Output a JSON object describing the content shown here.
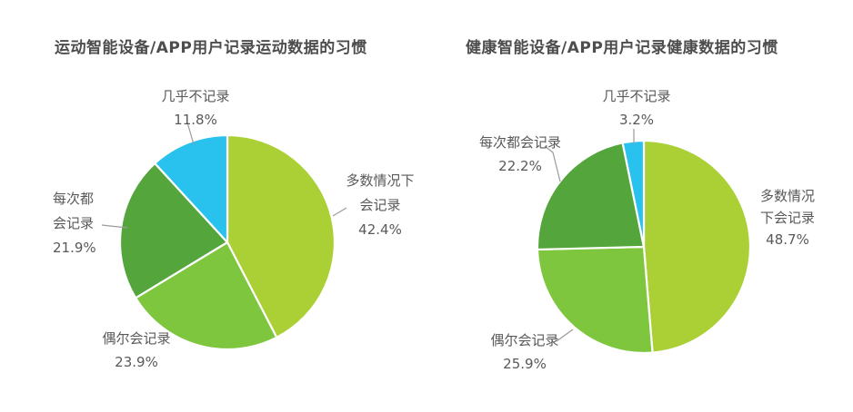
{
  "charts_section": {
    "left_title": "运动智能设备/APP用户记录运动数据的习惯",
    "right_title": "健康智能设备/APP用户记录健康数据的习惯"
  },
  "chart_data": [
    {
      "type": "pie",
      "title": "运动智能设备/APP用户记录运动数据的习惯",
      "labels": [
        "多数情况下会记录",
        "偶尔会记录",
        "每次都会记录",
        "几乎不记录"
      ],
      "values": [
        42.4,
        23.9,
        21.9,
        11.8
      ],
      "unit": "%",
      "colors": [
        "#abd036",
        "#7dc63e",
        "#54a63c",
        "#29c2ef"
      ],
      "start_angle": "12-oclock",
      "direction": "clockwise",
      "legend": "none",
      "callouts": [
        "多数情况下\n会记录\n42.4%",
        "偶尔会记录\n23.9%",
        "每次都\n会记录\n21.9%",
        "几乎不记录\n11.8%"
      ]
    },
    {
      "type": "pie",
      "title": "健康智能设备/APP用户记录健康数据的习惯",
      "labels": [
        "多数情况下会记录",
        "偶尔会记录",
        "每次都会记录",
        "几乎不记录"
      ],
      "values": [
        48.7,
        25.9,
        22.2,
        3.2
      ],
      "unit": "%",
      "colors": [
        "#abd036",
        "#7dc63e",
        "#54a63c",
        "#29c2ef"
      ],
      "start_angle": "12-oclock",
      "direction": "clockwise",
      "legend": "none",
      "callouts": [
        "多数情况\n下会记录\n48.7%",
        "偶尔会记录\n25.9%",
        "每次都会记录\n22.2%",
        "几乎不记录\n3.2%"
      ]
    }
  ]
}
